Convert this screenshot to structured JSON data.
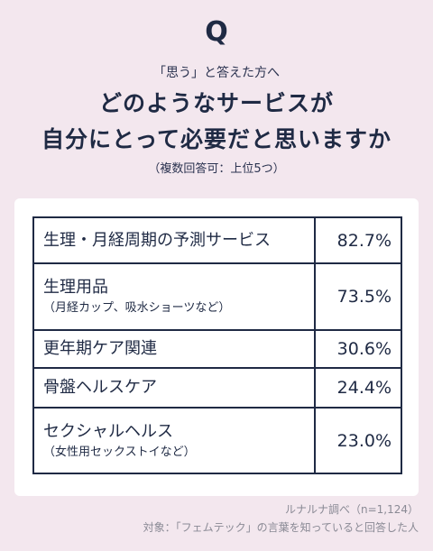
{
  "header": {
    "q_mark": "Q",
    "subtitle": "「思う」と答えた方へ",
    "question_line1": "どのようなサービスが",
    "question_line2": "自分にとって必要だと思いますか",
    "note": "（複数回答可：上位5つ）"
  },
  "results": [
    {
      "label": "生理・月経周期の予測サービス",
      "sub": "",
      "percent": "82.7%"
    },
    {
      "label": "生理用品",
      "sub": "（月経カップ、吸水ショーツなど）",
      "percent": "73.5%"
    },
    {
      "label": "更年期ケア関連",
      "sub": "",
      "percent": "30.6%"
    },
    {
      "label": "骨盤ヘルスケア",
      "sub": "",
      "percent": "24.4%"
    },
    {
      "label": "セクシャルヘルス",
      "sub": "（女性用セックストイなど）",
      "percent": "23.0%"
    }
  ],
  "footer": {
    "source": "ルナルナ調べ（n=1,124）",
    "target": "対象：「フェムテック」の言葉を知っていると回答した人"
  }
}
